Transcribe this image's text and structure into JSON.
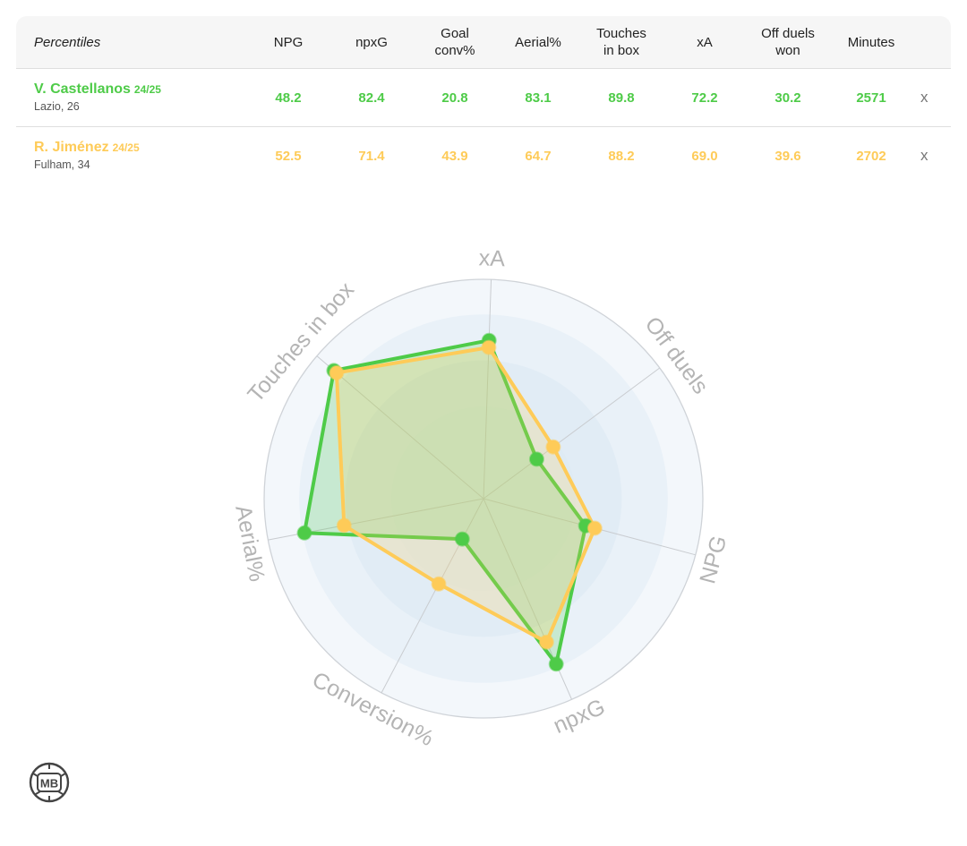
{
  "table": {
    "label": "Percentiles",
    "columns": [
      "NPG",
      "npxG",
      "Goal\nconv%",
      "Aerial%",
      "Touches\nin box",
      "xA",
      "Off duels\nwon",
      "Minutes"
    ],
    "close_label": "x"
  },
  "players": [
    {
      "name": "V. Castellanos",
      "season": "24/25",
      "sub": "Lazio, 26",
      "color": "#4ecb48",
      "values": [
        "48.2",
        "82.4",
        "20.8",
        "83.1",
        "89.8",
        "72.2",
        "30.2",
        "2571"
      ]
    },
    {
      "name": "R. Jiménez",
      "season": "24/25",
      "sub": "Fulham, 34",
      "color": "#fecb58",
      "values": [
        "52.5",
        "71.4",
        "43.9",
        "64.7",
        "88.2",
        "69.0",
        "39.6",
        "2702"
      ]
    }
  ],
  "chart_data": {
    "type": "radar",
    "axes": [
      "xA",
      "Off duels",
      "NPG",
      "npxG",
      "Conversion%",
      "Aerial%",
      "Touches in box"
    ],
    "range": [
      0,
      100
    ],
    "series": [
      {
        "name": "V. Castellanos",
        "color": "#4ecb48",
        "values": [
          72.2,
          30.2,
          48.2,
          82.4,
          20.8,
          83.1,
          89.8
        ]
      },
      {
        "name": "R. Jiménez",
        "color": "#fecb58",
        "values": [
          69.0,
          39.6,
          52.5,
          71.4,
          43.9,
          64.7,
          88.2
        ]
      }
    ],
    "colors": {
      "bands": [
        "#f3f7fb",
        "#e9f1f8",
        "#dce9f4"
      ],
      "rim": "#cfd3d8",
      "spokes": "#c9ccd0",
      "labels": "#b4b4b4"
    }
  },
  "logo": {
    "text": "MB"
  }
}
